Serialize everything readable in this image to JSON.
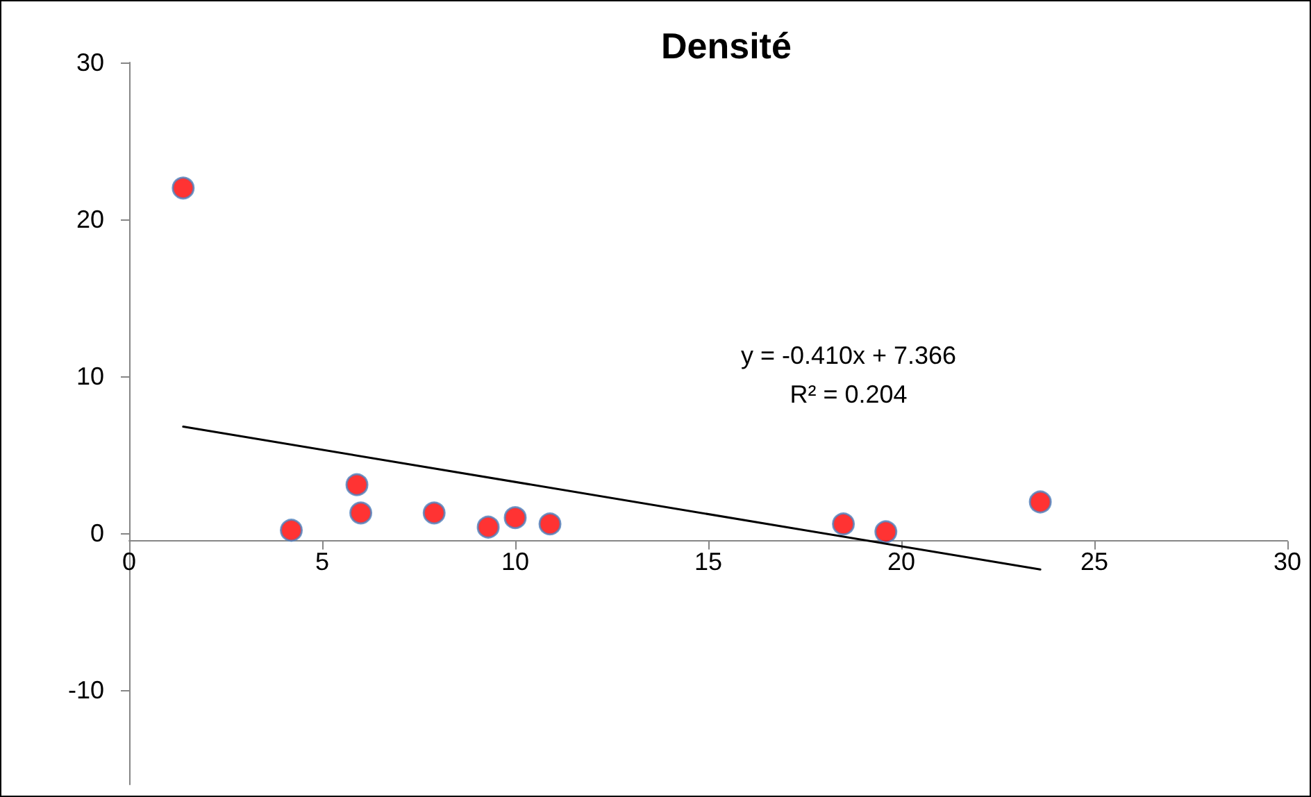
{
  "chart_data": {
    "type": "scatter",
    "title": "Densité",
    "xlim": [
      0,
      30
    ],
    "xticks": [
      0,
      5,
      10,
      15,
      20,
      25,
      30
    ],
    "ylim": [
      -16,
      30
    ],
    "yticks": [
      -10,
      0,
      10,
      20,
      30
    ],
    "marker": "circle",
    "annotations": [
      "y = -0.410x + 7.366",
      "R² = 0.204"
    ],
    "series": [
      {
        "color": "#ff0000",
        "x": [
          1.4,
          4.2,
          5.9,
          6.0,
          7.9,
          9.3,
          10.0,
          10.9,
          18.5,
          19.6,
          23.6
        ],
        "values": [
          22.0,
          0.2,
          3.1,
          1.3,
          1.3,
          0.4,
          1.0,
          0.6,
          0.6,
          0.1,
          2.0
        ]
      },
      {
        "type": "line",
        "color": "#000000",
        "marker": "none",
        "x": [
          1.4,
          23.6
        ],
        "values": [
          6.8,
          -2.3
        ]
      }
    ]
  }
}
